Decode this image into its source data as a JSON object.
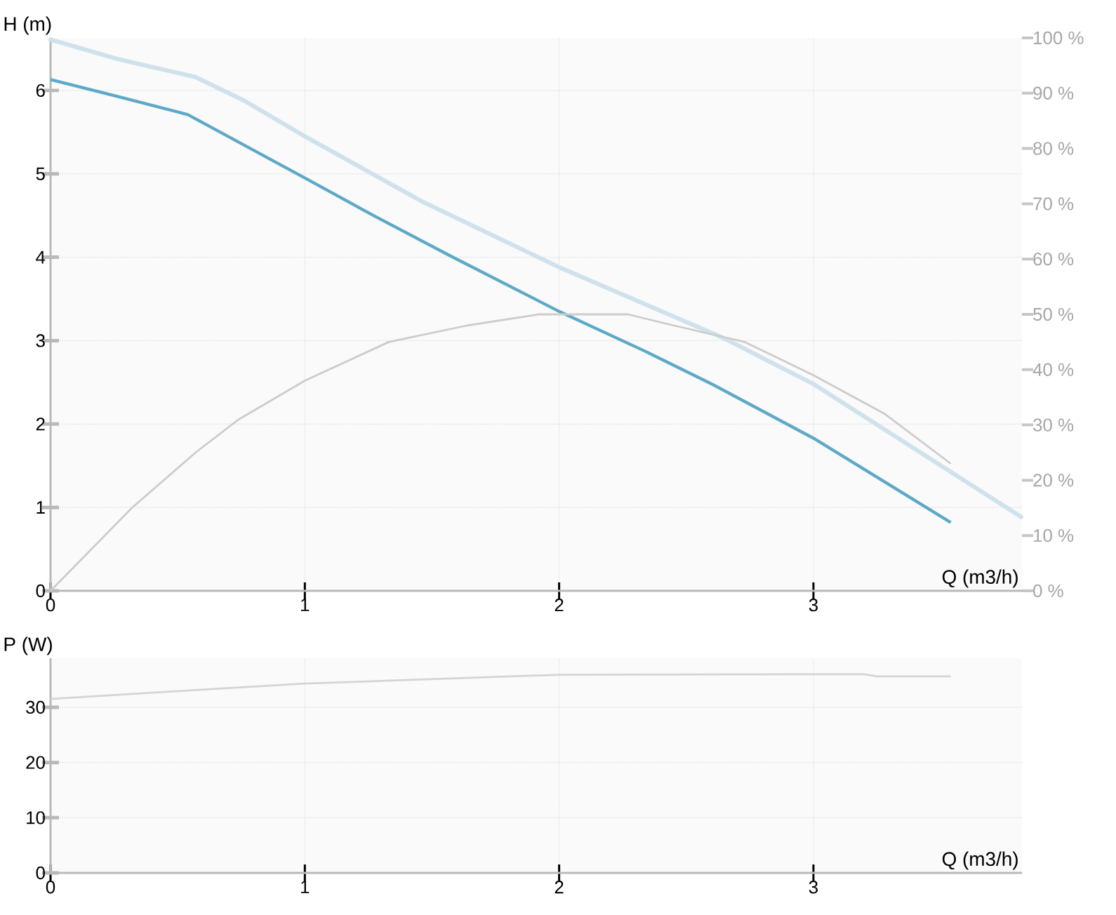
{
  "chart_data": [
    {
      "type": "line",
      "xlabel": "Q (m3/h)",
      "ylabel": "H (m)",
      "xlim": [
        0,
        3.82
      ],
      "xticks": [
        0,
        1,
        2,
        3
      ],
      "ylim": [
        0,
        6.63
      ],
      "yticks": [
        0,
        1,
        2,
        3,
        4,
        5,
        6
      ],
      "y2lim": [
        0,
        100
      ],
      "y2ticks": [
        {
          "value": 0,
          "label": "0 %"
        },
        {
          "value": 10,
          "label": "10 %"
        },
        {
          "value": 20,
          "label": "20 %"
        },
        {
          "value": 30,
          "label": "30 %"
        },
        {
          "value": 40,
          "label": "40 %"
        },
        {
          "value": 50,
          "label": "50 %"
        },
        {
          "value": 60,
          "label": "60 %"
        },
        {
          "value": 70,
          "label": "70 %"
        },
        {
          "value": 80,
          "label": "80 %"
        },
        {
          "value": 90,
          "label": "90 %"
        },
        {
          "value": 100,
          "label": "100 %"
        }
      ],
      "grid": true,
      "marker": "none",
      "series": [
        {
          "color": "#cfe2ec",
          "line_style": "dotted",
          "x": [
            0,
            0.26,
            0.57,
            0.76,
            1.0,
            1.46,
            2.0,
            2.64,
            3.0,
            3.82
          ],
          "values": [
            6.61,
            6.38,
            6.16,
            5.88,
            5.45,
            4.67,
            3.88,
            3.04,
            2.48,
            0.88
          ]
        },
        {
          "color": "#cccccc",
          "line_style": "solid",
          "axis": "y2",
          "x": [
            0,
            0.32,
            0.57,
            0.74,
            1.0,
            1.33,
            1.64,
            1.92,
            2.27,
            2.45,
            2.73,
            3.0,
            3.28,
            3.54
          ],
          "values": [
            0,
            15,
            25,
            31,
            38,
            45,
            48,
            50,
            50,
            48,
            45,
            39,
            32,
            23
          ]
        },
        {
          "color": "#5ea9c8",
          "line_style": "solid",
          "x": [
            0,
            0.26,
            0.54,
            1.0,
            1.27,
            1.57,
            2.0,
            2.34,
            2.6,
            3.0,
            3.54
          ],
          "values": [
            6.13,
            5.93,
            5.71,
            4.95,
            4.5,
            4.02,
            3.35,
            2.87,
            2.48,
            1.83,
            0.82
          ]
        }
      ]
    },
    {
      "type": "line",
      "xlabel": "Q (m3/h)",
      "ylabel": "P (W)",
      "xlim": [
        0,
        3.82
      ],
      "xticks": [
        0,
        1,
        2,
        3
      ],
      "ylim": [
        0,
        38.9
      ],
      "yticks": [
        0,
        10,
        20,
        30
      ],
      "grid": true,
      "marker": "none",
      "series": [
        {
          "color": "#d4d4d4",
          "line_style": "solid",
          "x": [
            0,
            0.49,
            1.0,
            2.0,
            3.0,
            3.2,
            3.25,
            3.54
          ],
          "values": [
            31.5,
            32.9,
            34.3,
            35.9,
            36.0,
            36.0,
            35.6,
            35.6
          ]
        }
      ]
    }
  ]
}
